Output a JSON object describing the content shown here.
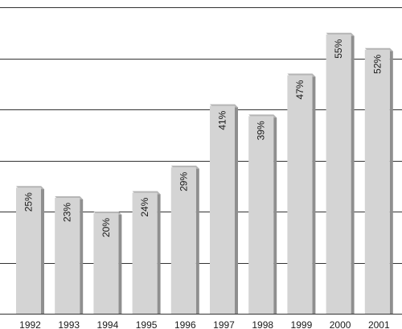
{
  "chart_data": {
    "type": "bar",
    "categories": [
      "1992",
      "1993",
      "1994",
      "1995",
      "1996",
      "1997",
      "1998",
      "1999",
      "2000",
      "2001"
    ],
    "values": [
      25,
      23,
      20,
      24,
      29,
      41,
      39,
      47,
      55,
      52
    ],
    "value_labels": [
      "25%",
      "23%",
      "20%",
      "24%",
      "29%",
      "41%",
      "39%",
      "47%",
      "55%",
      "52%"
    ],
    "ylim": [
      0,
      60
    ],
    "grid": true,
    "legend": "none",
    "colors": {
      "bar_face": "#d4d4d4",
      "bar_side": "#8f8f8f",
      "bar_top": "#b5b5b5",
      "grid": "#333333"
    }
  }
}
